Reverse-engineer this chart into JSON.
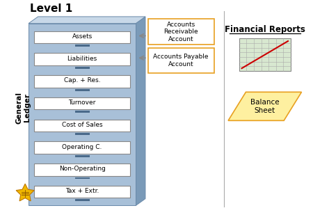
{
  "title": "Level 1",
  "general_ledger_label": "General\nLedger",
  "financial_reports_label": "Financial Reports",
  "balance_sheet_label": "Balance\nSheet",
  "drawer_labels": [
    "Assets",
    "Liabilities",
    "Cap. + Res.",
    "Turnover",
    "Cost of Sales",
    "Operating C.",
    "Non-Operating",
    "Tax + Extr."
  ],
  "account_boxes": [
    {
      "label": "Accounts\nReceivable\nAccount"
    },
    {
      "label": "Accounts Payable\nAccount"
    }
  ],
  "cabinet_color": "#a8c0d8",
  "cabinet_dark": "#7a9ab8",
  "cabinet_side": "#c8d8e8",
  "drawer_color": "#ffffff",
  "drawer_border": "#888888",
  "account_box_border": "#e8a020",
  "background_color": "#ffffff",
  "arrow_color": "#888888",
  "handle_color": "#4a6a8a",
  "divider_color": "#aaaaaa",
  "grid_bg": "#d8e8d0",
  "balance_sheet_bg": "#fef0a0",
  "star_fill": "#f0b800",
  "star_edge": "#c07800",
  "red_line": "#cc0000"
}
